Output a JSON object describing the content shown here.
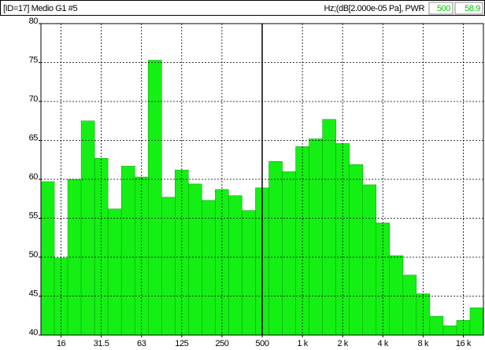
{
  "chart_data": {
    "type": "bar",
    "title": "[ID=17] Medio G1 #5",
    "unit_label": "Hz;(dB[2.000e-05 Pa], PWR",
    "cursor": {
      "label": "500",
      "value": 58.9
    },
    "categories": [
      null,
      "16",
      null,
      null,
      "31.5",
      null,
      null,
      "63",
      null,
      null,
      "125",
      null,
      null,
      "250",
      null,
      null,
      "500",
      null,
      null,
      "1 k",
      null,
      null,
      "2 k",
      null,
      null,
      "4 k",
      null,
      null,
      "8 k",
      null,
      null,
      "16 k",
      null
    ],
    "values": [
      59.7,
      49.9,
      60.0,
      67.5,
      62.7,
      56.2,
      61.7,
      60.3,
      75.3,
      57.7,
      61.2,
      59.4,
      57.3,
      58.7,
      57.9,
      56.0,
      58.9,
      62.3,
      61.0,
      64.2,
      65.2,
      67.7,
      64.6,
      61.9,
      59.3,
      54.4,
      50.2,
      47.7,
      45.3,
      42.4,
      41.2,
      41.9,
      43.5
    ],
    "color": "#14f014",
    "ylim": [
      40,
      80
    ],
    "yticks": [
      40,
      45,
      50,
      55,
      60,
      65,
      70,
      75,
      80
    ],
    "grid": true
  }
}
